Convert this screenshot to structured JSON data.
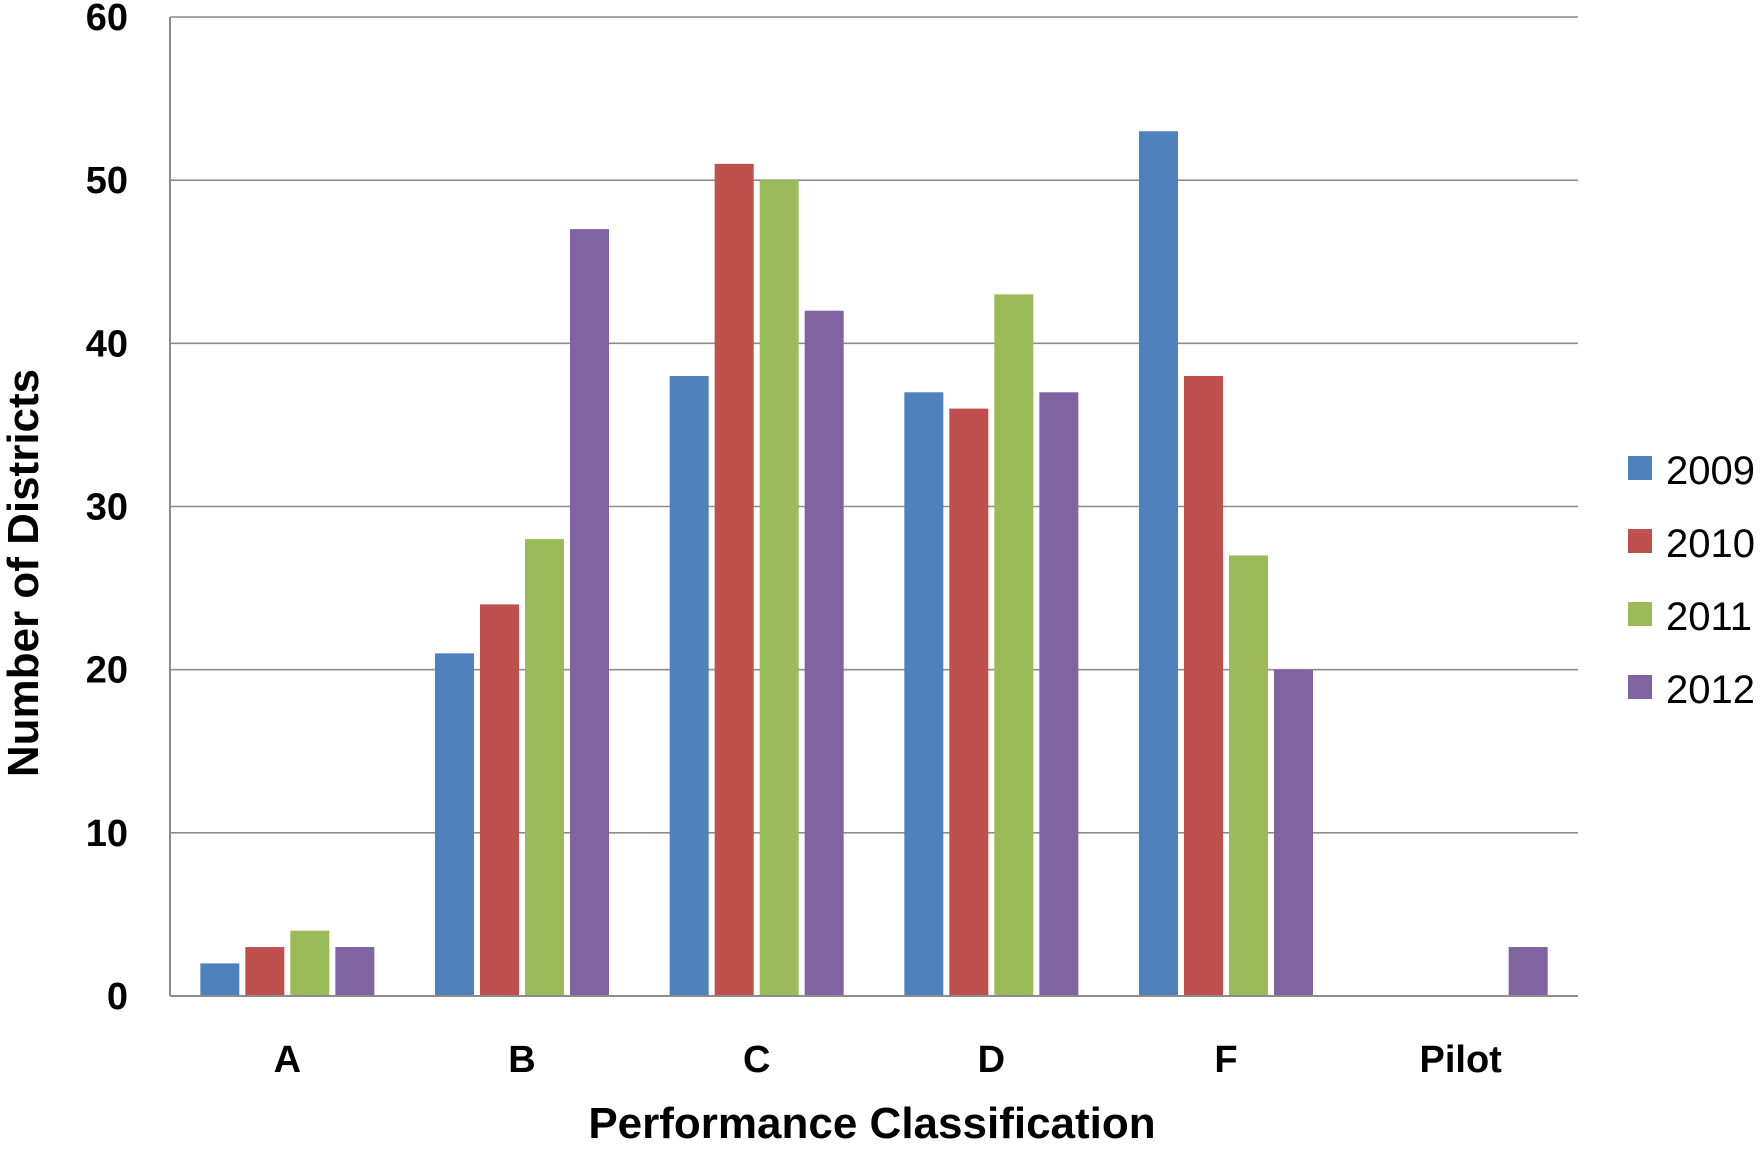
{
  "chart_data": {
    "type": "bar",
    "title": "",
    "xlabel": "Performance Classification",
    "ylabel": "Number of Districts",
    "categories": [
      "A",
      "B",
      "C",
      "D",
      "F",
      "Pilot"
    ],
    "series": [
      {
        "name": "2009",
        "color": "#4f81bd",
        "values": [
          2,
          21,
          38,
          37,
          53,
          null
        ]
      },
      {
        "name": "2010",
        "color": "#c0504d",
        "values": [
          3,
          24,
          51,
          36,
          38,
          null
        ]
      },
      {
        "name": "2011",
        "color": "#9bbb59",
        "values": [
          4,
          28,
          50,
          43,
          27,
          null
        ]
      },
      {
        "name": "2012",
        "color": "#8064a2",
        "values": [
          3,
          47,
          42,
          37,
          20,
          3
        ]
      }
    ],
    "ylim": [
      0,
      60
    ],
    "yticks": [
      "0",
      "10",
      "20",
      "30",
      "40",
      "50",
      "60"
    ],
    "grid": true,
    "legend_position": "right"
  }
}
